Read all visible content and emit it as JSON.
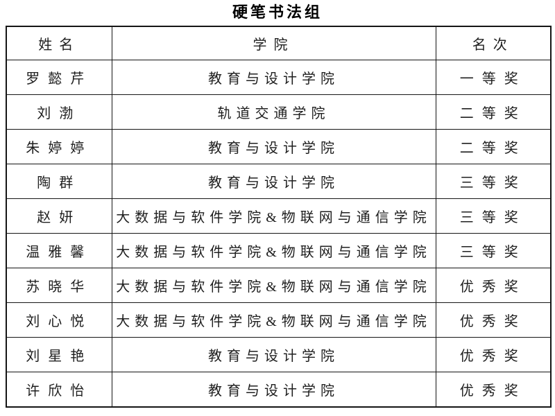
{
  "title": "硬笔书法组",
  "table": {
    "headers": {
      "name": "姓名",
      "college": "学院",
      "rank": "名次"
    },
    "rows": [
      {
        "name": "罗懿芹",
        "college": "教育与设计学院",
        "rank": "一等奖"
      },
      {
        "name": "刘渤",
        "college": "轨道交通学院",
        "rank": "二等奖"
      },
      {
        "name": "朱婷婷",
        "college": "教育与设计学院",
        "rank": "二等奖"
      },
      {
        "name": "陶群",
        "college": "教育与设计学院",
        "rank": "三等奖"
      },
      {
        "name": "赵妍",
        "college": "大数据与软件学院&物联网与通信学院",
        "rank": "三等奖"
      },
      {
        "name": "温雅馨",
        "college": "大数据与软件学院&物联网与通信学院",
        "rank": "三等奖"
      },
      {
        "name": "苏晓华",
        "college": "大数据与软件学院&物联网与通信学院",
        "rank": "优秀奖"
      },
      {
        "name": "刘心悦",
        "college": "大数据与软件学院&物联网与通信学院",
        "rank": "优秀奖"
      },
      {
        "name": "刘星艳",
        "college": "教育与设计学院",
        "rank": "优秀奖"
      },
      {
        "name": "许欣怡",
        "college": "教育与设计学院",
        "rank": "优秀奖"
      }
    ]
  },
  "colors": {
    "background": "#ffffff",
    "border": "#141414",
    "text": "#1f1f1f",
    "title_text": "#000000"
  }
}
